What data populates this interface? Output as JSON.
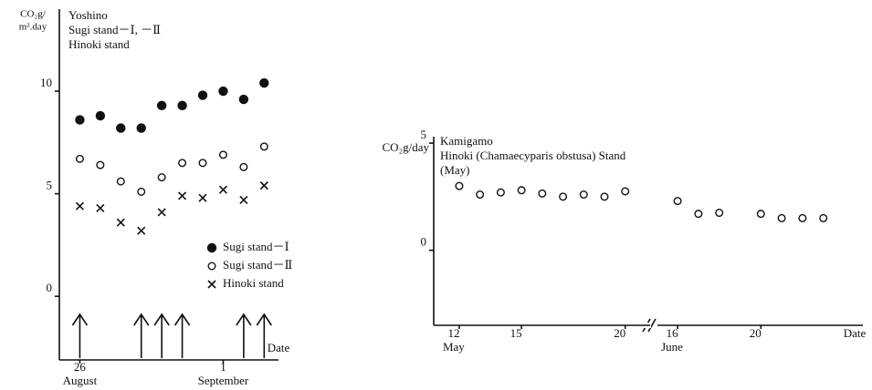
{
  "chart_data": [
    {
      "type": "scatter",
      "title": [
        "Yoshino",
        "Sugi stand－Ⅰ, －Ⅱ",
        "Hinoki stand"
      ],
      "ylabel": [
        "CO₂g/",
        "m².day"
      ],
      "xlabel": "Date",
      "x": [
        0,
        1,
        2,
        3,
        4,
        5,
        6,
        7,
        8,
        9
      ],
      "xlim": [
        -1.0,
        9.7
      ],
      "xticks": [
        {
          "value": 0,
          "label": "26"
        },
        {
          "value": 7,
          "label": "1"
        }
      ],
      "month_labels": [
        {
          "value": 0,
          "label": "August"
        },
        {
          "value": 7,
          "label": "September"
        }
      ],
      "ylim": [
        -3.1,
        14
      ],
      "yticks": [
        0,
        5,
        10
      ],
      "arrows_x": [
        0,
        3,
        4,
        5,
        8,
        9
      ],
      "legend": "lower right",
      "series": [
        {
          "name": "Sugi stand－Ⅰ",
          "marker": "filled-circle",
          "color": "#111111",
          "values": [
            8.6,
            8.8,
            8.2,
            8.2,
            9.3,
            9.3,
            9.8,
            10.0,
            9.6,
            10.4
          ]
        },
        {
          "name": "Sugi stand－Ⅱ",
          "marker": "open-circle",
          "color": "#111111",
          "values": [
            6.7,
            6.4,
            5.6,
            5.1,
            5.8,
            6.5,
            6.5,
            6.9,
            6.3,
            7.3
          ]
        },
        {
          "name": "Hinoki stand",
          "marker": "x",
          "color": "#111111",
          "values": [
            4.4,
            4.3,
            3.6,
            3.2,
            4.1,
            4.9,
            4.8,
            5.2,
            4.7,
            5.4
          ]
        }
      ]
    },
    {
      "type": "segmented-scatter",
      "title": [
        "Kamigamo",
        "Hinoki (Chamaecyparis obstusa) Stand",
        "(May)"
      ],
      "ylabel": "CO₂g/day",
      "xlabel": "Date",
      "ylim": [
        -3.5,
        5.3
      ],
      "yticks": [
        0,
        5
      ],
      "marker": "open-circle",
      "color": "#111111",
      "segments": [
        {
          "label": "May",
          "xlim": [
            10.77,
            21.2
          ],
          "xticks": [
            12,
            15,
            20
          ],
          "x": [
            12,
            13,
            14,
            15,
            16,
            17,
            18,
            19,
            20
          ],
          "values": [
            3.0,
            2.6,
            2.7,
            2.8,
            2.65,
            2.5,
            2.6,
            2.5,
            2.75
          ]
        },
        {
          "label": "June",
          "xlim": [
            15.03,
            24.9
          ],
          "xticks": [
            16,
            20
          ],
          "x": [
            16,
            17,
            18,
            20,
            21,
            22,
            23
          ],
          "values": [
            2.3,
            1.7,
            1.75,
            1.7,
            1.5,
            1.5,
            1.5
          ]
        }
      ]
    }
  ]
}
